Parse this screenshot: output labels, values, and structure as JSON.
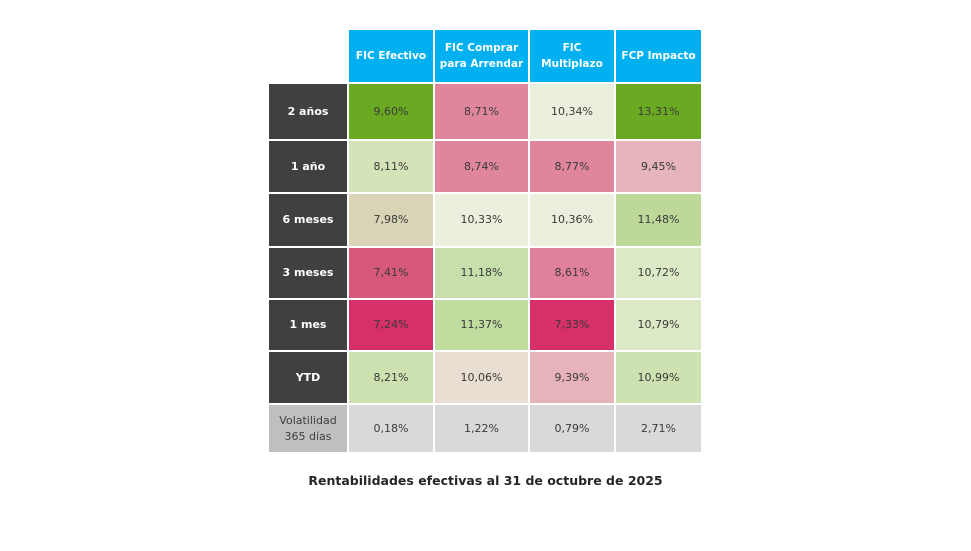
{
  "chart_data": {
    "type": "heatmap",
    "title": "Rentabilidades efectivas al 31 de octubre de 2025",
    "columns": [
      "FIC Efectivo",
      "FIC Comprar para Arrendar",
      "FIC Multiplazo",
      "FCP Impacto"
    ],
    "rows": [
      {
        "label": "2 años",
        "values": [
          "9,60%",
          "8,71%",
          "10,34%",
          "13,31%"
        ],
        "colors": [
          "#6aaa23",
          "#e0869c",
          "#ebf0de",
          "#6aaa23"
        ]
      },
      {
        "label": "1 año",
        "values": [
          "8,11%",
          "8,74%",
          "8,77%",
          "9,45%"
        ],
        "colors": [
          "#d5e3b8",
          "#e0869c",
          "#e0869c",
          "#e5b5bb"
        ]
      },
      {
        "label": "6 meses",
        "values": [
          "7,98%",
          "10,33%",
          "10,36%",
          "11,48%"
        ],
        "colors": [
          "#d8d4b5",
          "#ebf0de",
          "#ebf0de",
          "#bdd898"
        ]
      },
      {
        "label": "3 meses",
        "values": [
          "7,41%",
          "11,18%",
          "8,61%",
          "10,72%"
        ],
        "colors": [
          "#d6587a",
          "#c8dfac",
          "#e0809a",
          "#dce9c6"
        ]
      },
      {
        "label": "1 mes",
        "values": [
          "7,24%",
          "11,37%",
          "7,33%",
          "10,79%"
        ],
        "colors": [
          "#d62f6a",
          "#c1dc9f",
          "#d62f6a",
          "#dce9c6"
        ]
      },
      {
        "label": "YTD",
        "values": [
          "8,21%",
          "10,06%",
          "9,39%",
          "10,99%"
        ],
        "colors": [
          "#cde2b0",
          "#e8ded2",
          "#e5b3b9",
          "#cde2b0"
        ]
      },
      {
        "label": "Volatilidad 365 días",
        "values": [
          "0,18%",
          "1,22%",
          "0,79%",
          "2,71%"
        ],
        "colors": [
          "#d9d9d9",
          "#d9d9d9",
          "#d9d9d9",
          "#d9d9d9"
        ]
      }
    ],
    "header_color": "#00b0f0",
    "row_header_color": "#404040"
  }
}
